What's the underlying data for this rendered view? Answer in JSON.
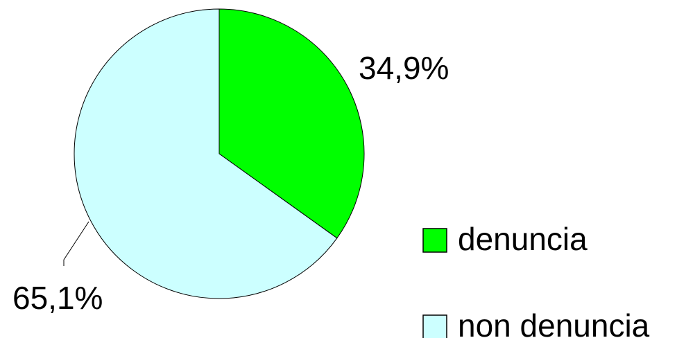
{
  "chart_data": {
    "type": "pie",
    "categories": [
      "denuncia",
      "non denuncia"
    ],
    "values": [
      34.9,
      65.1
    ],
    "value_labels": [
      "34,9%",
      "65,1%"
    ],
    "colors": [
      "#00ff00",
      "#ccffff"
    ]
  }
}
